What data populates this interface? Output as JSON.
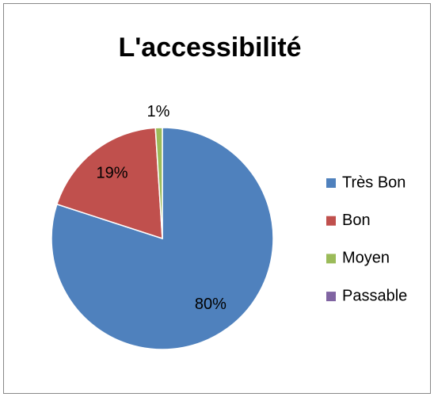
{
  "chart_data": {
    "type": "pie",
    "title": "L'accessibilité",
    "categories": [
      "Très Bon",
      "Bon",
      "Moyen",
      "Passable"
    ],
    "values": [
      80,
      19,
      1,
      0
    ],
    "value_labels": [
      "80%",
      "19%",
      "1%",
      null
    ],
    "colors": [
      "#4f81bd",
      "#c0504d",
      "#9bbb59",
      "#8064a2"
    ],
    "legend": "right"
  }
}
